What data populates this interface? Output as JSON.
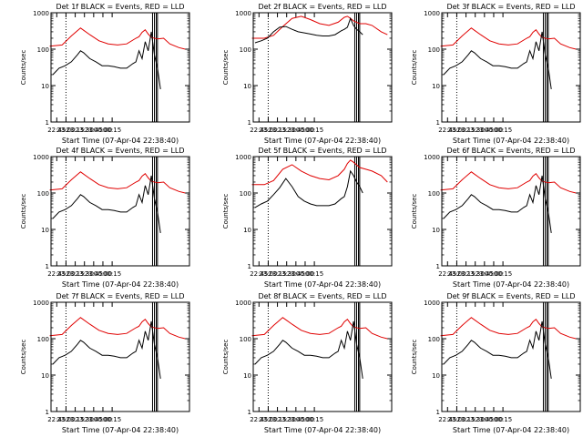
{
  "figure": {
    "type": "multi-panel time series (3x3 grid)",
    "xlabel": "Start Time (07-Apr-04 22:38:40)",
    "ylabel": "Counts/sec",
    "x_ticks": [
      "22:45",
      "23:00",
      "23:15",
      "23:30",
      "23:45",
      "00:00",
      "00:15"
    ],
    "y_ticks": [
      "1",
      "10",
      "100",
      "1000"
    ],
    "colors": {
      "events": "#000000",
      "lld": "#e00000",
      "background": "#ffffff",
      "axes": "#000000"
    }
  },
  "chart_data": [
    {
      "type": "line",
      "title": "Det 1f BLACK = Events, RED = LLD",
      "yscale": "log",
      "ylim": [
        1,
        1000
      ],
      "xlabel": "Start Time (07-Apr-04 22:38:40)",
      "ylabel": "Counts/sec",
      "x_ticks": [
        "22:45",
        "23:00",
        "23:15",
        "23:30",
        "23:45",
        "00:00",
        "00:15"
      ],
      "series": [
        {
          "name": "LLD",
          "x": [
            -5,
            15,
            30,
            45,
            60,
            75,
            90,
            105,
            120,
            135,
            140,
            145,
            150,
            155,
            160,
            170,
            180,
            190,
            205,
            215
          ],
          "y": [
            120,
            130,
            230,
            380,
            250,
            170,
            140,
            130,
            140,
            200,
            220,
            290,
            340,
            260,
            210,
            190,
            200,
            140,
            110,
            100
          ]
        },
        {
          "name": "Events",
          "x": [
            0,
            10,
            20,
            30,
            40,
            45,
            50,
            60,
            70,
            80,
            90,
            100,
            110,
            120,
            130,
            135,
            140,
            145,
            150,
            155,
            160,
            165,
            170,
            175
          ],
          "y": [
            20,
            30,
            35,
            45,
            70,
            90,
            80,
            55,
            45,
            35,
            35,
            33,
            30,
            30,
            40,
            45,
            90,
            55,
            160,
            90,
            300,
            70,
            30,
            8
          ]
        }
      ]
    },
    {
      "type": "line",
      "title": "Det 2f BLACK = Events, RED = LLD",
      "yscale": "log",
      "ylim": [
        1,
        1000
      ],
      "xlabel": "Start Time (07-Apr-04 22:38:40)",
      "ylabel": "Counts/sec",
      "x_ticks": [
        "22:45",
        "23:00",
        "23:15",
        "23:30",
        "23:45",
        "00:00",
        "00:15"
      ],
      "series": [
        {
          "name": "LLD",
          "x": [
            -5,
            15,
            30,
            45,
            60,
            75,
            90,
            105,
            120,
            135,
            145,
            150,
            155,
            160,
            170,
            180,
            190,
            205,
            215
          ],
          "y": [
            200,
            200,
            240,
            420,
            700,
            800,
            650,
            500,
            450,
            550,
            750,
            800,
            700,
            600,
            500,
            500,
            450,
            300,
            250
          ]
        },
        {
          "name": "Events",
          "x": [
            0,
            10,
            20,
            30,
            40,
            50,
            60,
            70,
            80,
            90,
            100,
            110,
            120,
            130,
            140,
            145,
            150,
            155,
            160,
            165,
            170,
            175
          ],
          "y": [
            150,
            170,
            200,
            300,
            400,
            420,
            350,
            300,
            280,
            260,
            240,
            230,
            230,
            250,
            320,
            350,
            400,
            700,
            450,
            350,
            300,
            250
          ]
        }
      ]
    },
    {
      "type": "line",
      "title": "Det 3f BLACK = Events, RED = LLD",
      "yscale": "log",
      "ylim": [
        1,
        1000
      ],
      "xlabel": "Start Time (07-Apr-04 22:38:40)",
      "ylabel": "Counts/sec",
      "x_ticks": [
        "22:45",
        "23:00",
        "23:15",
        "23:30",
        "23:45",
        "00:00",
        "00:15"
      ],
      "series": [
        {
          "name": "LLD",
          "x": [
            -5,
            15,
            30,
            45,
            60,
            75,
            90,
            105,
            120,
            135,
            140,
            145,
            150,
            155,
            160,
            170,
            180,
            190,
            205,
            215
          ],
          "y": [
            120,
            130,
            230,
            380,
            250,
            170,
            140,
            130,
            140,
            200,
            220,
            290,
            340,
            260,
            210,
            190,
            200,
            140,
            110,
            100
          ]
        },
        {
          "name": "Events",
          "x": [
            0,
            10,
            20,
            30,
            40,
            45,
            50,
            60,
            70,
            80,
            90,
            100,
            110,
            120,
            130,
            135,
            140,
            145,
            150,
            155,
            160,
            165,
            170,
            175
          ],
          "y": [
            20,
            30,
            35,
            45,
            70,
            90,
            80,
            55,
            45,
            35,
            35,
            33,
            30,
            30,
            40,
            45,
            90,
            55,
            160,
            90,
            300,
            70,
            30,
            8
          ]
        }
      ]
    },
    {
      "type": "line",
      "title": "Det 4f BLACK = Events, RED = LLD",
      "yscale": "log",
      "ylim": [
        1,
        1000
      ],
      "xlabel": "Start Time (07-Apr-04 22:38:40)",
      "ylabel": "Counts/sec",
      "x_ticks": [
        "22:45",
        "23:00",
        "23:15",
        "23:30",
        "23:45",
        "00:00",
        "00:15"
      ],
      "series": [
        {
          "name": "LLD",
          "x": [
            -5,
            15,
            30,
            45,
            60,
            75,
            90,
            105,
            120,
            135,
            140,
            145,
            150,
            155,
            160,
            170,
            180,
            190,
            205,
            215
          ],
          "y": [
            120,
            130,
            230,
            380,
            250,
            170,
            140,
            130,
            140,
            200,
            220,
            290,
            340,
            260,
            210,
            190,
            200,
            140,
            110,
            100
          ]
        },
        {
          "name": "Events",
          "x": [
            0,
            10,
            20,
            30,
            40,
            45,
            50,
            60,
            70,
            80,
            90,
            100,
            110,
            120,
            130,
            135,
            140,
            145,
            150,
            155,
            160,
            165,
            170,
            175
          ],
          "y": [
            20,
            30,
            35,
            45,
            70,
            90,
            80,
            55,
            45,
            35,
            35,
            33,
            30,
            30,
            40,
            45,
            90,
            55,
            160,
            90,
            300,
            70,
            30,
            8
          ]
        }
      ]
    },
    {
      "type": "line",
      "title": "Det 5f BLACK = Events, RED = LLD",
      "yscale": "log",
      "ylim": [
        1,
        1000
      ],
      "xlabel": "Start Time (07-Apr-04 22:38:40)",
      "ylabel": "Counts/sec",
      "x_ticks": [
        "22:45",
        "23:00",
        "23:15",
        "23:30",
        "23:45",
        "00:00",
        "00:15"
      ],
      "series": [
        {
          "name": "LLD",
          "x": [
            -5,
            15,
            30,
            45,
            60,
            75,
            90,
            105,
            120,
            135,
            145,
            150,
            155,
            160,
            170,
            180,
            190,
            205,
            215
          ],
          "y": [
            170,
            170,
            220,
            450,
            600,
            400,
            300,
            250,
            230,
            300,
            450,
            650,
            800,
            700,
            500,
            450,
            400,
            300,
            200
          ]
        },
        {
          "name": "Events",
          "x": [
            0,
            10,
            20,
            30,
            40,
            50,
            60,
            70,
            80,
            90,
            100,
            110,
            120,
            130,
            140,
            145,
            150,
            155,
            160,
            165,
            170,
            175
          ],
          "y": [
            40,
            50,
            60,
            90,
            140,
            250,
            150,
            80,
            60,
            50,
            45,
            45,
            45,
            50,
            70,
            80,
            150,
            400,
            300,
            200,
            150,
            100
          ]
        }
      ]
    },
    {
      "type": "line",
      "title": "Det 6f BLACK = Events, RED = LLD",
      "yscale": "log",
      "ylim": [
        1,
        1000
      ],
      "xlabel": "Start Time (07-Apr-04 22:38:40)",
      "ylabel": "Counts/sec",
      "x_ticks": [
        "22:45",
        "23:00",
        "23:15",
        "23:30",
        "23:45",
        "00:00",
        "00:15"
      ],
      "series": [
        {
          "name": "LLD",
          "x": [
            -5,
            15,
            30,
            45,
            60,
            75,
            90,
            105,
            120,
            135,
            140,
            145,
            150,
            155,
            160,
            170,
            180,
            190,
            205,
            215
          ],
          "y": [
            120,
            130,
            230,
            380,
            250,
            170,
            140,
            130,
            140,
            200,
            220,
            290,
            340,
            260,
            210,
            190,
            200,
            140,
            110,
            100
          ]
        },
        {
          "name": "Events",
          "x": [
            0,
            10,
            20,
            30,
            40,
            45,
            50,
            60,
            70,
            80,
            90,
            100,
            110,
            120,
            130,
            135,
            140,
            145,
            150,
            155,
            160,
            165,
            170,
            175
          ],
          "y": [
            20,
            30,
            35,
            45,
            70,
            90,
            80,
            55,
            45,
            35,
            35,
            33,
            30,
            30,
            40,
            45,
            90,
            55,
            160,
            90,
            300,
            70,
            30,
            8
          ]
        }
      ]
    },
    {
      "type": "line",
      "title": "Det 7f BLACK = Events, RED = LLD",
      "yscale": "log",
      "ylim": [
        1,
        1000
      ],
      "xlabel": "Start Time (07-Apr-04 22:38:40)",
      "ylabel": "Counts/sec",
      "x_ticks": [
        "22:45",
        "23:00",
        "23:15",
        "23:30",
        "23:45",
        "00:00",
        "00:15"
      ],
      "series": [
        {
          "name": "LLD",
          "x": [
            -5,
            15,
            30,
            45,
            60,
            75,
            90,
            105,
            120,
            135,
            140,
            145,
            150,
            155,
            160,
            170,
            180,
            190,
            205,
            215
          ],
          "y": [
            120,
            130,
            230,
            380,
            250,
            170,
            140,
            130,
            140,
            200,
            220,
            290,
            340,
            260,
            210,
            190,
            200,
            140,
            110,
            100
          ]
        },
        {
          "name": "Events",
          "x": [
            0,
            10,
            20,
            30,
            40,
            45,
            50,
            60,
            70,
            80,
            90,
            100,
            110,
            120,
            130,
            135,
            140,
            145,
            150,
            155,
            160,
            165,
            170,
            175
          ],
          "y": [
            20,
            30,
            35,
            45,
            70,
            90,
            80,
            55,
            45,
            35,
            35,
            33,
            30,
            30,
            40,
            45,
            90,
            55,
            160,
            90,
            300,
            70,
            30,
            8
          ]
        }
      ]
    },
    {
      "type": "line",
      "title": "Det 8f BLACK = Events, RED = LLD",
      "yscale": "log",
      "ylim": [
        1,
        1000
      ],
      "xlabel": "Start Time (07-Apr-04 22:38:40)",
      "ylabel": "Counts/sec",
      "x_ticks": [
        "22:45",
        "23:00",
        "23:15",
        "23:30",
        "23:45",
        "00:00",
        "00:15"
      ],
      "series": [
        {
          "name": "LLD",
          "x": [
            -5,
            15,
            30,
            45,
            60,
            75,
            90,
            105,
            120,
            135,
            140,
            145,
            150,
            155,
            160,
            170,
            180,
            190,
            205,
            215
          ],
          "y": [
            120,
            130,
            230,
            380,
            250,
            170,
            140,
            130,
            140,
            200,
            220,
            290,
            340,
            260,
            210,
            190,
            200,
            140,
            110,
            100
          ]
        },
        {
          "name": "Events",
          "x": [
            0,
            10,
            20,
            30,
            40,
            45,
            50,
            60,
            70,
            80,
            90,
            100,
            110,
            120,
            130,
            135,
            140,
            145,
            150,
            155,
            160,
            165,
            170,
            175
          ],
          "y": [
            20,
            30,
            35,
            45,
            70,
            90,
            80,
            55,
            45,
            35,
            35,
            33,
            30,
            30,
            40,
            45,
            90,
            55,
            160,
            90,
            300,
            70,
            30,
            8
          ]
        }
      ]
    },
    {
      "type": "line",
      "title": "Det 9f BLACK = Events, RED = LLD",
      "yscale": "log",
      "ylim": [
        1,
        1000
      ],
      "xlabel": "Start Time (07-Apr-04 22:38:40)",
      "ylabel": "Counts/sec",
      "x_ticks": [
        "22:45",
        "23:00",
        "23:15",
        "23:30",
        "23:45",
        "00:00",
        "00:15"
      ],
      "series": [
        {
          "name": "LLD",
          "x": [
            -5,
            15,
            30,
            45,
            60,
            75,
            90,
            105,
            120,
            135,
            140,
            145,
            150,
            155,
            160,
            170,
            180,
            190,
            205,
            215
          ],
          "y": [
            120,
            130,
            230,
            380,
            250,
            170,
            140,
            130,
            140,
            200,
            220,
            290,
            340,
            260,
            210,
            190,
            200,
            140,
            110,
            100
          ]
        },
        {
          "name": "Events",
          "x": [
            0,
            10,
            20,
            30,
            40,
            45,
            50,
            60,
            70,
            80,
            90,
            100,
            110,
            120,
            130,
            135,
            140,
            145,
            150,
            155,
            160,
            165,
            170,
            175
          ],
          "y": [
            20,
            30,
            35,
            45,
            70,
            90,
            80,
            55,
            45,
            35,
            35,
            33,
            30,
            30,
            40,
            45,
            90,
            55,
            160,
            90,
            300,
            70,
            30,
            8
          ]
        }
      ]
    }
  ]
}
